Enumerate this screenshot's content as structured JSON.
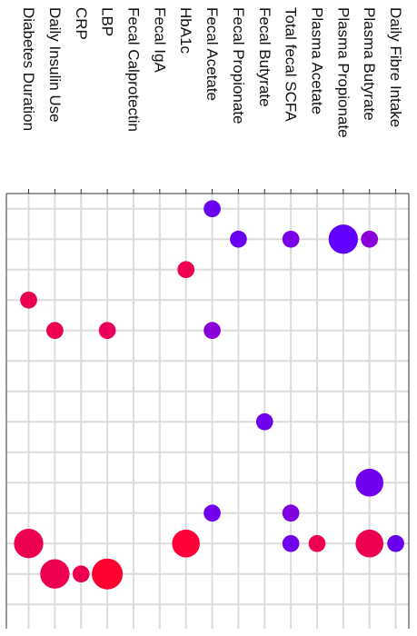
{
  "chart_data": {
    "type": "scatter",
    "title": "",
    "xlabel": "",
    "ylabel": "",
    "grid": true,
    "variables": [
      "Daily Fibre Intake",
      "Plasma Butyrate",
      "Plasma Propionate",
      "Plasma Acetate",
      "Total fecal SCFA",
      "Fecal Butyrate",
      "Fecal Propionate",
      "Fecal Acetate",
      "HbA1c",
      "Fecal IgA",
      "Fecal Calprotectin",
      "LBP",
      "CRP",
      "Daily Insulin Use",
      "Diabetes Duration"
    ],
    "rows": 14,
    "colors": {
      "low": "#5a00ff",
      "high": "#ff0033",
      "grid": "#dcdcdc",
      "axis": "#333333"
    },
    "points": [
      {
        "variable": "Fecal Acetate",
        "row": 1,
        "size": 0.55,
        "color": "#6a00f0"
      },
      {
        "variable": "Plasma Propionate",
        "row": 2,
        "size": 0.95,
        "color": "#6000ff"
      },
      {
        "variable": "Plasma Butyrate",
        "row": 2,
        "size": 0.55,
        "color": "#8a00d8"
      },
      {
        "variable": "Total fecal SCFA",
        "row": 2,
        "size": 0.55,
        "color": "#7a00e8"
      },
      {
        "variable": "Fecal Propionate",
        "row": 2,
        "size": 0.55,
        "color": "#6a00f0"
      },
      {
        "variable": "HbA1c",
        "row": 3,
        "size": 0.55,
        "color": "#ee0050"
      },
      {
        "variable": "Diabetes Duration",
        "row": 4,
        "size": 0.55,
        "color": "#ee0050"
      },
      {
        "variable": "Fecal Acetate",
        "row": 5,
        "size": 0.55,
        "color": "#8a00d8"
      },
      {
        "variable": "LBP",
        "row": 5,
        "size": 0.55,
        "color": "#e8005a"
      },
      {
        "variable": "Daily Insulin Use",
        "row": 5,
        "size": 0.55,
        "color": "#ee0050"
      },
      {
        "variable": "Fecal Butyrate",
        "row": 8,
        "size": 0.55,
        "color": "#7000ee"
      },
      {
        "variable": "Plasma Butyrate",
        "row": 10,
        "size": 0.9,
        "color": "#7000ee"
      },
      {
        "variable": "Total fecal SCFA",
        "row": 11,
        "size": 0.55,
        "color": "#8000e0"
      },
      {
        "variable": "Fecal Acetate",
        "row": 11,
        "size": 0.55,
        "color": "#7000ee"
      },
      {
        "variable": "Daily Fibre Intake",
        "row": 12,
        "size": 0.55,
        "color": "#6a00f0"
      },
      {
        "variable": "Plasma Butyrate",
        "row": 12,
        "size": 0.9,
        "color": "#ee0050"
      },
      {
        "variable": "Plasma Acetate",
        "row": 12,
        "size": 0.55,
        "color": "#ee0050"
      },
      {
        "variable": "Total fecal SCFA",
        "row": 12,
        "size": 0.55,
        "color": "#7000ee"
      },
      {
        "variable": "HbA1c",
        "row": 12,
        "size": 0.9,
        "color": "#ff0038"
      },
      {
        "variable": "Diabetes Duration",
        "row": 12,
        "size": 0.95,
        "color": "#ee0050"
      },
      {
        "variable": "CRP",
        "row": 13,
        "size": 0.55,
        "color": "#ee0050"
      },
      {
        "variable": "LBP",
        "row": 13,
        "size": 1.0,
        "color": "#ff0030"
      },
      {
        "variable": "Daily Insulin Use",
        "row": 13,
        "size": 0.95,
        "color": "#ee0050"
      }
    ]
  }
}
